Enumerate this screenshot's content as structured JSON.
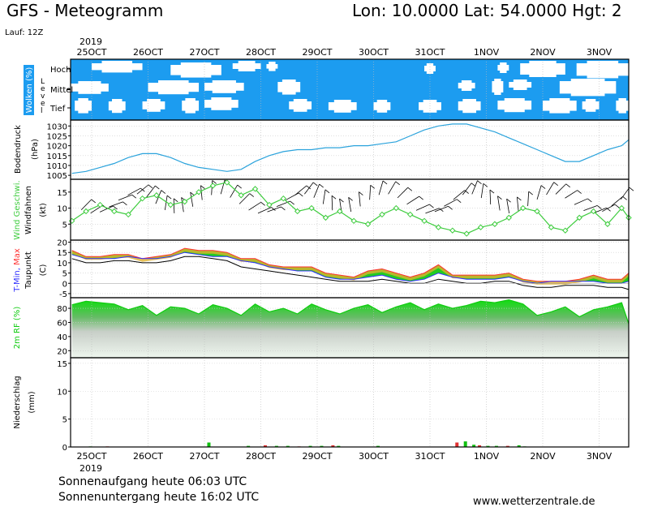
{
  "header": {
    "title": "GFS - Meteogramm",
    "coords": "Lon: 10.0000  Lat: 54.0000  Hgt: 2",
    "run": "Lauf: 12Z",
    "year": "2019"
  },
  "footer": {
    "sunrise": "Sonnenaufgang heute 06:03 UTC",
    "sunset": "Sonnenuntergang heute 16:02 UTC",
    "site": "www.wetterzentrale.de"
  },
  "colors": {
    "cloud_bg": "#1c9cf0",
    "pressure": "#2ba3dc",
    "wind": "#3ecc3e",
    "tmax": "#ff3030",
    "tmin": "#3030ff",
    "rh": "#10cc10",
    "precip_green": "#10c010",
    "precip_red": "#e03030"
  },
  "chart_data": [
    {
      "type": "area",
      "panel": "clouds",
      "title": "Wolken (%)",
      "level_title": "Level",
      "levels": [
        "Hoch",
        "Mittel",
        "Tief"
      ],
      "x": [
        "25OCT",
        "26OCT",
        "27OCT",
        "28OCT",
        "29OCT",
        "30OCT",
        "31OCT",
        "1NOV",
        "2NOV",
        "3NOV"
      ]
    },
    {
      "type": "line",
      "panel": "pressure",
      "ylabel": "Bodendruck",
      "unit": "(hPa)",
      "ylim": [
        1003,
        1033
      ],
      "yticks": [
        1005,
        1010,
        1015,
        1020,
        1025,
        1030
      ],
      "x": [
        0,
        0.25,
        0.5,
        0.75,
        1,
        1.25,
        1.5,
        1.75,
        2,
        2.25,
        2.5,
        2.75,
        3,
        3.25,
        3.5,
        3.75,
        4,
        4.25,
        4.5,
        4.75,
        5,
        5.25,
        5.5,
        5.75,
        6,
        6.25,
        6.5,
        6.75,
        7,
        7.25,
        7.5,
        7.75,
        8,
        8.25,
        8.5,
        8.75,
        9,
        9.25,
        9.5,
        9.75,
        10
      ],
      "values": [
        1006,
        1007,
        1009,
        1011,
        1014,
        1016,
        1016,
        1014,
        1011,
        1009,
        1008,
        1007,
        1008,
        1012,
        1015,
        1017,
        1018,
        1018,
        1019,
        1019,
        1020,
        1020,
        1021,
        1022,
        1025,
        1028,
        1030,
        1031,
        1031,
        1029,
        1027,
        1024,
        1021,
        1018,
        1015,
        1012,
        1012,
        1015,
        1018,
        1020,
        1023
      ]
    },
    {
      "type": "line",
      "panel": "wind",
      "ylabel": "Wind Geschwi.",
      "ylabel2": "Windfahnen",
      "unit": "(kt)",
      "ylim": [
        0,
        19
      ],
      "yticks": [
        5,
        10,
        15
      ],
      "x": [
        0,
        0.25,
        0.5,
        0.75,
        1,
        1.25,
        1.5,
        1.75,
        2,
        2.25,
        2.5,
        2.75,
        3,
        3.25,
        3.5,
        3.75,
        4,
        4.25,
        4.5,
        4.75,
        5,
        5.25,
        5.5,
        5.75,
        6,
        6.25,
        6.5,
        6.75,
        7,
        7.25,
        7.5,
        7.75,
        8,
        8.25,
        8.5,
        8.75,
        9,
        9.25,
        9.5,
        9.75,
        10
      ],
      "values": [
        6,
        9,
        11,
        9,
        8,
        13,
        14,
        11,
        12,
        15,
        17,
        18,
        14,
        16,
        11,
        13,
        9,
        10,
        7,
        9,
        6,
        5,
        8,
        10,
        8,
        6,
        4,
        3,
        2,
        4,
        5,
        7,
        10,
        9,
        4,
        3,
        7,
        9,
        5,
        10,
        7
      ]
    },
    {
      "type": "area",
      "panel": "temperature",
      "ylabel": "T-Min, Max",
      "ylabel2": "Taupunkt",
      "unit": "(C)",
      "ylim": [
        -7,
        21
      ],
      "yticks": [
        -5,
        0,
        5,
        10,
        15,
        20
      ],
      "x": [
        0,
        0.25,
        0.5,
        0.75,
        1,
        1.25,
        1.5,
        1.75,
        2,
        2.25,
        2.5,
        2.75,
        3,
        3.25,
        3.5,
        3.75,
        4,
        4.25,
        4.5,
        4.75,
        5,
        5.25,
        5.5,
        5.75,
        6,
        6.25,
        6.5,
        6.75,
        7,
        7.25,
        7.5,
        7.75,
        8,
        8.25,
        8.5,
        8.75,
        9,
        9.25,
        9.5,
        9.75,
        10
      ],
      "series": [
        {
          "name": "T-Max",
          "values": [
            16,
            13,
            13,
            14,
            14,
            12,
            13,
            14,
            17,
            16,
            16,
            15,
            12,
            12,
            9,
            8,
            8,
            8,
            5,
            4,
            3,
            6,
            7,
            5,
            3,
            5,
            9,
            4,
            4,
            4,
            4,
            5,
            2,
            1,
            1,
            1,
            2,
            4,
            2,
            2,
            5
          ]
        },
        {
          "name": "T-Min",
          "values": [
            14,
            12,
            12,
            12,
            13,
            12,
            12,
            13,
            15,
            14,
            13,
            13,
            11,
            10,
            8,
            7,
            6,
            6,
            3,
            2,
            2,
            3,
            4,
            2,
            1,
            2,
            5,
            3,
            2,
            2,
            2,
            3,
            1,
            0,
            1,
            1,
            1,
            1,
            0,
            0,
            1
          ]
        },
        {
          "name": "Taupunkt",
          "values": [
            12,
            10,
            10,
            11,
            11,
            10,
            10,
            11,
            13,
            13,
            12,
            11,
            8,
            7,
            6,
            5,
            4,
            3,
            2,
            1,
            1,
            1,
            2,
            1,
            0,
            0,
            2,
            1,
            0,
            0,
            1,
            1,
            -1,
            -2,
            -2,
            -1,
            -1,
            -1,
            -2,
            -2,
            -3
          ]
        }
      ]
    },
    {
      "type": "area",
      "panel": "humidity",
      "ylabel": "2m RF (%)",
      "ylim": [
        10,
        95
      ],
      "yticks": [
        20,
        40,
        60,
        80
      ],
      "x": [
        0,
        0.25,
        0.5,
        0.75,
        1,
        1.25,
        1.5,
        1.75,
        2,
        2.25,
        2.5,
        2.75,
        3,
        3.25,
        3.5,
        3.75,
        4,
        4.25,
        4.5,
        4.75,
        5,
        5.25,
        5.5,
        5.75,
        6,
        6.25,
        6.5,
        6.75,
        7,
        7.25,
        7.5,
        7.75,
        8,
        8.25,
        8.5,
        8.75,
        9,
        9.25,
        9.5,
        9.75,
        10
      ],
      "values": [
        85,
        90,
        88,
        86,
        78,
        84,
        70,
        82,
        80,
        72,
        85,
        80,
        70,
        86,
        75,
        80,
        72,
        86,
        78,
        72,
        80,
        85,
        74,
        82,
        88,
        78,
        86,
        80,
        84,
        90,
        88,
        92,
        86,
        70,
        75,
        82,
        68,
        78,
        82,
        88,
        58
      ]
    },
    {
      "type": "bar",
      "panel": "precipitation",
      "ylabel": "Niederschlag",
      "unit": "(mm)",
      "ylim": [
        0,
        16
      ],
      "yticks": [
        0,
        5,
        10,
        15
      ],
      "x": [
        0.3,
        0.6,
        2.4,
        3.1,
        3.4,
        3.6,
        3.8,
        4.0,
        4.2,
        4.4,
        4.6,
        4.7,
        5.4,
        6.8,
        6.95,
        7.1,
        7.2,
        7.35,
        7.5,
        7.7,
        7.9,
        8.0
      ],
      "values": [
        0.1,
        0.1,
        0.8,
        0.2,
        0.3,
        0.2,
        0.2,
        0.1,
        0.2,
        0.2,
        0.3,
        0.2,
        0.2,
        0.8,
        1.0,
        0.4,
        0.3,
        0.2,
        0.2,
        0.2,
        0.3,
        0.1
      ]
    }
  ]
}
